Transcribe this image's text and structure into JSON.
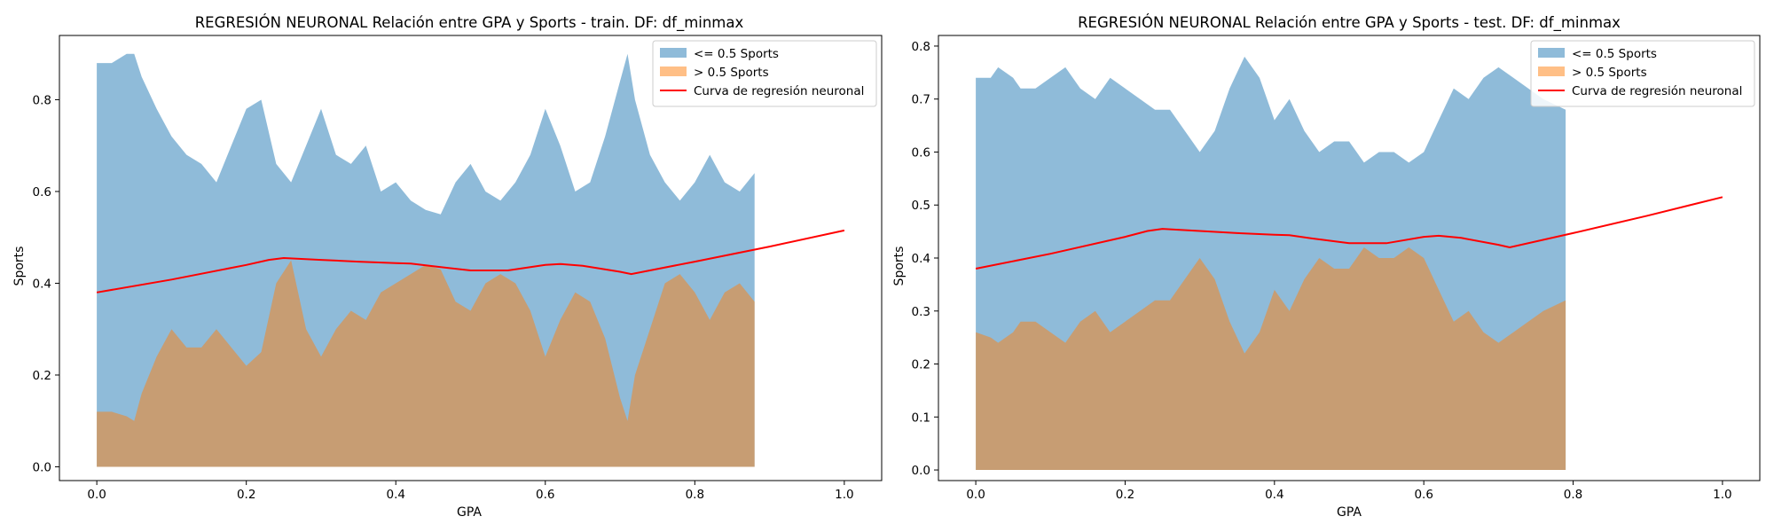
{
  "chart_data": [
    {
      "type": "area",
      "title": "REGRESIÓN NEURONAL Relación entre GPA y Sports - train. DF: df_minmax",
      "xlabel": "GPA",
      "ylabel": "Sports",
      "xlim": [
        -0.05,
        1.05
      ],
      "ylim": [
        -0.03,
        0.94
      ],
      "xticks": [
        "0.0",
        "0.2",
        "0.4",
        "0.6",
        "0.8",
        "1.0"
      ],
      "yticks": [
        "0.0",
        "0.2",
        "0.4",
        "0.6",
        "0.8"
      ],
      "grid": false,
      "legend_position": "top-right",
      "series": [
        {
          "name": "<= 0.5 Sports",
          "kind": "area",
          "color": "#1f77b4",
          "opacity": 0.5,
          "x": [
            0.0,
            0.02,
            0.04,
            0.05,
            0.06,
            0.08,
            0.1,
            0.12,
            0.14,
            0.16,
            0.18,
            0.2,
            0.22,
            0.24,
            0.26,
            0.28,
            0.3,
            0.32,
            0.34,
            0.36,
            0.38,
            0.4,
            0.42,
            0.44,
            0.46,
            0.48,
            0.5,
            0.52,
            0.54,
            0.56,
            0.58,
            0.6,
            0.62,
            0.64,
            0.66,
            0.68,
            0.7,
            0.71,
            0.72,
            0.74,
            0.76,
            0.78,
            0.8,
            0.82,
            0.84,
            0.86,
            0.88
          ],
          "y": [
            0.88,
            0.88,
            0.9,
            0.9,
            0.85,
            0.78,
            0.72,
            0.68,
            0.66,
            0.62,
            0.7,
            0.78,
            0.8,
            0.66,
            0.62,
            0.7,
            0.78,
            0.68,
            0.66,
            0.7,
            0.6,
            0.62,
            0.58,
            0.56,
            0.55,
            0.62,
            0.66,
            0.6,
            0.58,
            0.62,
            0.68,
            0.78,
            0.7,
            0.6,
            0.62,
            0.72,
            0.84,
            0.9,
            0.8,
            0.68,
            0.62,
            0.58,
            0.62,
            0.68,
            0.62,
            0.6,
            0.64
          ]
        },
        {
          "name": "> 0.5 Sports",
          "kind": "area",
          "color": "#ff7f0e",
          "opacity": 0.5,
          "x": [
            0.0,
            0.02,
            0.04,
            0.05,
            0.06,
            0.08,
            0.1,
            0.12,
            0.14,
            0.16,
            0.18,
            0.2,
            0.22,
            0.24,
            0.26,
            0.28,
            0.3,
            0.32,
            0.34,
            0.36,
            0.38,
            0.4,
            0.42,
            0.44,
            0.46,
            0.48,
            0.5,
            0.52,
            0.54,
            0.56,
            0.58,
            0.6,
            0.62,
            0.64,
            0.66,
            0.68,
            0.7,
            0.71,
            0.72,
            0.74,
            0.76,
            0.78,
            0.8,
            0.82,
            0.84,
            0.86,
            0.88
          ],
          "y": [
            0.12,
            0.12,
            0.11,
            0.1,
            0.16,
            0.24,
            0.3,
            0.26,
            0.26,
            0.3,
            0.26,
            0.22,
            0.25,
            0.4,
            0.45,
            0.3,
            0.24,
            0.3,
            0.34,
            0.32,
            0.38,
            0.4,
            0.42,
            0.44,
            0.43,
            0.36,
            0.34,
            0.4,
            0.42,
            0.4,
            0.34,
            0.24,
            0.32,
            0.38,
            0.36,
            0.28,
            0.15,
            0.1,
            0.2,
            0.3,
            0.4,
            0.42,
            0.38,
            0.32,
            0.38,
            0.4,
            0.36
          ]
        },
        {
          "name": "Curva de regresión neuronal",
          "kind": "line",
          "color": "#ff0000",
          "x": [
            0.0,
            0.1,
            0.2,
            0.23,
            0.25,
            0.3,
            0.35,
            0.4,
            0.42,
            0.45,
            0.5,
            0.55,
            0.6,
            0.62,
            0.65,
            0.7,
            0.715,
            0.8,
            0.9,
            1.0
          ],
          "y": [
            0.38,
            0.408,
            0.44,
            0.451,
            0.455,
            0.451,
            0.447,
            0.444,
            0.443,
            0.437,
            0.428,
            0.428,
            0.44,
            0.442,
            0.438,
            0.425,
            0.42,
            0.447,
            0.48,
            0.515
          ]
        }
      ]
    },
    {
      "type": "area",
      "title": "REGRESIÓN NEURONAL Relación entre GPA y Sports - test. DF: df_minmax",
      "xlabel": "GPA",
      "ylabel": "Sports",
      "xlim": [
        -0.05,
        1.05
      ],
      "ylim": [
        -0.02,
        0.82
      ],
      "xticks": [
        "0.0",
        "0.2",
        "0.4",
        "0.6",
        "0.8",
        "1.0"
      ],
      "yticks": [
        "0.0",
        "0.1",
        "0.2",
        "0.3",
        "0.4",
        "0.5",
        "0.6",
        "0.7",
        "0.8"
      ],
      "grid": false,
      "legend_position": "top-right",
      "series": [
        {
          "name": "<= 0.5 Sports",
          "kind": "area",
          "color": "#1f77b4",
          "opacity": 0.5,
          "x": [
            0.0,
            0.02,
            0.03,
            0.05,
            0.06,
            0.08,
            0.1,
            0.12,
            0.14,
            0.16,
            0.18,
            0.2,
            0.22,
            0.24,
            0.26,
            0.28,
            0.3,
            0.32,
            0.34,
            0.36,
            0.38,
            0.4,
            0.42,
            0.44,
            0.46,
            0.48,
            0.5,
            0.52,
            0.54,
            0.56,
            0.58,
            0.6,
            0.62,
            0.64,
            0.66,
            0.68,
            0.7,
            0.72,
            0.74,
            0.76,
            0.79
          ],
          "y": [
            0.74,
            0.74,
            0.76,
            0.74,
            0.72,
            0.72,
            0.74,
            0.76,
            0.72,
            0.7,
            0.74,
            0.72,
            0.7,
            0.68,
            0.68,
            0.64,
            0.6,
            0.64,
            0.72,
            0.78,
            0.74,
            0.66,
            0.7,
            0.64,
            0.6,
            0.62,
            0.62,
            0.58,
            0.6,
            0.6,
            0.58,
            0.6,
            0.66,
            0.72,
            0.7,
            0.74,
            0.76,
            0.74,
            0.72,
            0.7,
            0.68
          ]
        },
        {
          "name": "> 0.5 Sports",
          "kind": "area",
          "color": "#ff7f0e",
          "opacity": 0.5,
          "x": [
            0.0,
            0.02,
            0.03,
            0.05,
            0.06,
            0.08,
            0.1,
            0.12,
            0.14,
            0.16,
            0.18,
            0.2,
            0.22,
            0.24,
            0.26,
            0.28,
            0.3,
            0.32,
            0.34,
            0.36,
            0.38,
            0.4,
            0.42,
            0.44,
            0.46,
            0.48,
            0.5,
            0.52,
            0.54,
            0.56,
            0.58,
            0.6,
            0.62,
            0.64,
            0.66,
            0.68,
            0.7,
            0.72,
            0.74,
            0.76,
            0.79
          ],
          "y": [
            0.26,
            0.25,
            0.24,
            0.26,
            0.28,
            0.28,
            0.26,
            0.24,
            0.28,
            0.3,
            0.26,
            0.28,
            0.3,
            0.32,
            0.32,
            0.36,
            0.4,
            0.36,
            0.28,
            0.22,
            0.26,
            0.34,
            0.3,
            0.36,
            0.4,
            0.38,
            0.38,
            0.42,
            0.4,
            0.4,
            0.42,
            0.4,
            0.34,
            0.28,
            0.3,
            0.26,
            0.24,
            0.26,
            0.28,
            0.3,
            0.32
          ]
        },
        {
          "name": "Curva de regresión neuronal",
          "kind": "line",
          "color": "#ff0000",
          "x": [
            0.0,
            0.1,
            0.2,
            0.23,
            0.25,
            0.3,
            0.35,
            0.4,
            0.42,
            0.45,
            0.5,
            0.55,
            0.6,
            0.62,
            0.65,
            0.7,
            0.715,
            0.8,
            0.9,
            1.0
          ],
          "y": [
            0.38,
            0.408,
            0.44,
            0.451,
            0.455,
            0.451,
            0.447,
            0.444,
            0.443,
            0.437,
            0.428,
            0.428,
            0.44,
            0.442,
            0.438,
            0.425,
            0.42,
            0.447,
            0.48,
            0.515
          ]
        }
      ]
    }
  ]
}
